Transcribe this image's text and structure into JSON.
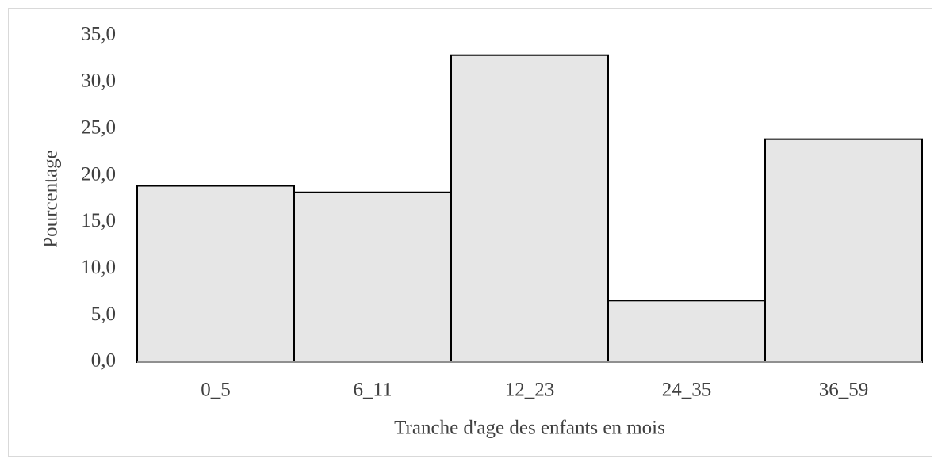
{
  "chart_data": {
    "type": "bar",
    "categories": [
      "0_5",
      "6_11",
      "12_23",
      "24_35",
      "36_59"
    ],
    "values": [
      18.9,
      18.2,
      32.9,
      6.6,
      23.9
    ],
    "color": "#e6e6e6",
    "ylim": [
      0,
      35
    ],
    "yticks": [
      {
        "value": 0,
        "label": "0,0"
      },
      {
        "value": 5,
        "label": "5,0"
      },
      {
        "value": 10,
        "label": "10,0"
      },
      {
        "value": 15,
        "label": "15,0"
      },
      {
        "value": 20,
        "label": "20,0"
      },
      {
        "value": 25,
        "label": "25,0"
      },
      {
        "value": 30,
        "label": "30,0"
      },
      {
        "value": 35,
        "label": "35,0"
      }
    ],
    "y_label": "Pourcentage",
    "x_label": "Tranche d'age des enfants en mois",
    "grid": false
  }
}
